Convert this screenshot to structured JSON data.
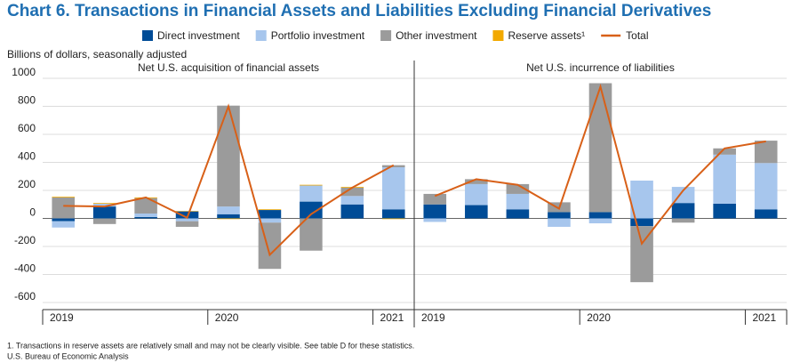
{
  "chart_data": {
    "type": "stacked_bar",
    "title": "Chart 6. Transactions in Financial Assets and Liabilities Excluding Financial Derivatives",
    "ylabel": "Billions of dollars, seasonally adjusted",
    "ylim": [
      -600,
      1000
    ],
    "yticks": [
      -600,
      -400,
      -200,
      0,
      200,
      400,
      600,
      800,
      1000
    ],
    "grid": true,
    "series": [
      {
        "name": "Direct investment",
        "color": "#004c97"
      },
      {
        "name": "Portfolio investment",
        "color": "#a7c6ed"
      },
      {
        "name": "Other investment",
        "color": "#9b9b9b"
      },
      {
        "name": "Reserve assets¹",
        "color": "#f2a900"
      }
    ],
    "total": {
      "name": "Total",
      "color": "#d86018"
    },
    "panels": [
      {
        "subtitle": "Net U.S. acquisition of financial assets",
        "categories": [
          "2019",
          null,
          null,
          null,
          "2020",
          null,
          null,
          null,
          "2021"
        ],
        "series": [
          {
            "values": [
              -20,
              85,
              10,
              50,
              30,
              60,
              120,
              100,
              65
            ]
          },
          {
            "values": [
              -45,
              20,
              25,
              -20,
              55,
              -30,
              115,
              60,
              300
            ]
          },
          {
            "values": [
              150,
              -40,
              110,
              -40,
              720,
              -330,
              -230,
              60,
              15
            ]
          },
          {
            "values": [
              5,
              5,
              5,
              3,
              -5,
              5,
              5,
              5,
              -5
            ]
          }
        ],
        "total": [
          90,
          85,
          150,
          5,
          800,
          -260,
          30,
          220,
          380
        ]
      },
      {
        "subtitle": "Net U.S. incurrence of liabilities",
        "categories": [
          "2019",
          null,
          null,
          null,
          "2020",
          null,
          null,
          null,
          "2021"
        ],
        "series": [
          {
            "values": [
              100,
              95,
              65,
              45,
              45,
              -55,
              110,
              105,
              65
            ]
          },
          {
            "values": [
              -25,
              150,
              110,
              -60,
              -35,
              270,
              115,
              350,
              330
            ]
          },
          {
            "values": [
              75,
              35,
              70,
              70,
              920,
              -400,
              -30,
              45,
              160
            ]
          }
        ],
        "total": [
          160,
          280,
          240,
          70,
          940,
          -180,
          200,
          500,
          550
        ]
      }
    ],
    "notes": [
      "1. Transactions in reserve assets are relatively small and may not be clearly visible. See table D for these statistics.",
      "U.S. Bureau of Economic Analysis"
    ]
  }
}
